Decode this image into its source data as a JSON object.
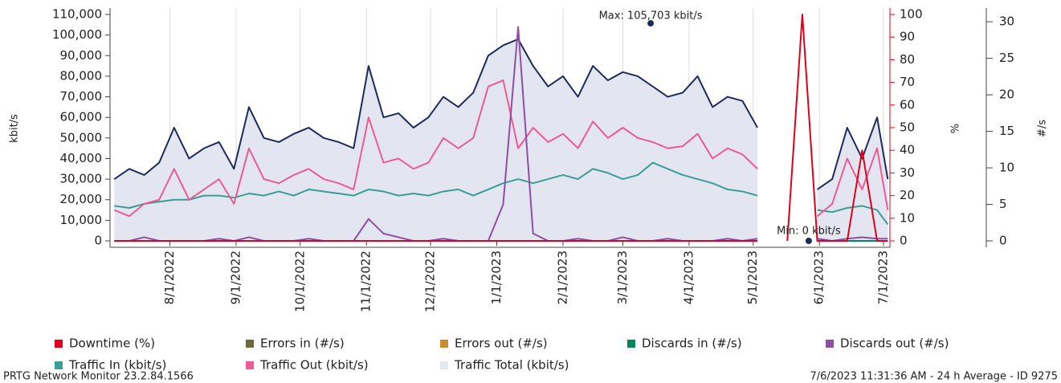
{
  "chart_data": {
    "type": "line",
    "x": [
      "7/6/2022",
      "7/13/2022",
      "7/20/2022",
      "7/27/2022",
      "8/3/2022",
      "8/10/2022",
      "8/17/2022",
      "8/24/2022",
      "8/31/2022",
      "9/7/2022",
      "9/14/2022",
      "9/21/2022",
      "9/28/2022",
      "10/5/2022",
      "10/12/2022",
      "10/19/2022",
      "10/26/2022",
      "11/2/2022",
      "11/9/2022",
      "11/16/2022",
      "11/23/2022",
      "11/30/2022",
      "12/7/2022",
      "12/14/2022",
      "12/21/2022",
      "12/28/2022",
      "1/4/2023",
      "1/11/2023",
      "1/18/2023",
      "1/25/2023",
      "2/1/2023",
      "2/8/2023",
      "2/15/2023",
      "2/22/2023",
      "3/1/2023",
      "3/8/2023",
      "3/15/2023",
      "3/22/2023",
      "3/29/2023",
      "4/5/2023",
      "4/12/2023",
      "4/19/2023",
      "4/26/2023",
      "5/3/2023",
      "5/10/2023",
      "5/17/2023",
      "5/24/2023",
      "5/31/2023",
      "6/7/2023",
      "6/14/2023",
      "6/21/2023",
      "6/28/2023",
      "7/3/2023"
    ],
    "xlim": [
      "7/4/2022",
      "7/4/2023"
    ],
    "xticks": [
      "8/1/2022",
      "9/1/2022",
      "10/1/2022",
      "11/1/2022",
      "12/1/2022",
      "1/1/2023",
      "2/1/2023",
      "3/1/2023",
      "4/1/2023",
      "5/1/2023",
      "6/1/2023",
      "7/1/2023"
    ],
    "ylabel": "kbit/s",
    "y2label": "%",
    "y3label": "#/s",
    "ylim": [
      0,
      110000
    ],
    "yticks": [
      0,
      {
        "value": 10000,
        "label": "10,000"
      },
      {
        "value": 20000,
        "label": "20,000"
      },
      {
        "value": 30000,
        "label": "30,000"
      },
      {
        "value": 40000,
        "label": "40,000"
      },
      {
        "value": 50000,
        "label": "50,000"
      },
      {
        "value": 60000,
        "label": "60,000"
      },
      {
        "value": 70000,
        "label": "70,000"
      },
      {
        "value": 80000,
        "label": "80,000"
      },
      {
        "value": 90000,
        "label": "90,000"
      },
      {
        "value": 100000,
        "label": "100,000"
      },
      {
        "value": 110000,
        "label": "110,000"
      }
    ],
    "y2lim": [
      0,
      100
    ],
    "y2ticks": [
      0,
      10,
      20,
      30,
      40,
      50,
      60,
      70,
      80,
      90,
      100
    ],
    "y3lim": [
      0,
      31
    ],
    "y3ticks": [
      0,
      5,
      10,
      15,
      20,
      25,
      30
    ],
    "grid": true,
    "series": [
      {
        "name": "Downtime (%)",
        "color": "#e0001b",
        "axis": "y2",
        "values": [
          0,
          0,
          0,
          0,
          0,
          0,
          0,
          0,
          0,
          0,
          0,
          0,
          0,
          0,
          0,
          0,
          0,
          0,
          0,
          0,
          0,
          0,
          0,
          0,
          0,
          0,
          0,
          0,
          0,
          0,
          0,
          0,
          0,
          0,
          0,
          0,
          0,
          0,
          0,
          0,
          0,
          0,
          0,
          0,
          null,
          0,
          100,
          0,
          0,
          0,
          40,
          0,
          0
        ]
      },
      {
        "name": "Errors in (#/s)",
        "color": "#6b6b3a",
        "axis": "y3",
        "values": [
          0,
          0,
          0,
          0,
          0,
          0,
          0,
          0,
          0,
          0,
          0,
          0,
          0,
          0,
          0,
          0,
          0,
          0,
          0,
          0,
          0,
          0,
          0,
          0,
          0,
          0,
          0,
          0,
          0,
          0,
          0,
          0,
          0,
          0,
          0,
          0,
          0,
          0,
          0,
          0,
          0,
          0,
          0,
          0,
          null,
          0,
          null,
          0,
          0,
          0,
          0,
          0,
          0
        ]
      },
      {
        "name": "Errors out (#/s)",
        "color": "#cc8a33",
        "axis": "y3",
        "values": [
          0,
          0,
          0,
          0,
          0,
          0,
          0,
          0,
          0,
          0,
          0,
          0,
          0,
          0,
          0,
          0,
          0,
          0,
          0,
          0,
          0,
          0,
          0,
          0,
          0,
          0,
          0,
          0,
          0,
          0,
          0,
          0,
          0,
          0,
          0,
          0,
          0,
          0,
          0,
          0,
          0,
          0,
          0,
          0,
          null,
          0,
          null,
          0,
          0,
          0,
          0,
          0,
          0
        ]
      },
      {
        "name": "Discards in (#/s)",
        "color": "#00875a",
        "axis": "y3",
        "values": [
          0,
          0,
          0,
          0,
          0,
          0,
          0,
          0,
          0,
          0,
          0,
          0,
          0,
          0,
          0,
          0,
          0,
          0,
          0,
          0,
          0,
          0,
          0,
          0,
          0,
          0,
          0,
          0,
          0,
          0,
          0,
          0,
          0,
          0,
          0,
          0,
          0,
          0,
          0,
          0,
          0,
          0,
          0,
          0,
          null,
          0,
          null,
          0,
          0,
          0,
          0,
          0,
          0
        ]
      },
      {
        "name": "Discards out (#/s)",
        "color": "#8e4fa3",
        "axis": "y3",
        "values": [
          0,
          0,
          0.5,
          0,
          0,
          0,
          0,
          0.3,
          0,
          0.5,
          0,
          0,
          0,
          0.3,
          0,
          0,
          0,
          3,
          1,
          0.5,
          0,
          0,
          0.3,
          0,
          0,
          0,
          5,
          29.3,
          1,
          0,
          0,
          0.3,
          0,
          0,
          0.5,
          0,
          0,
          0.3,
          0,
          0,
          0,
          0.3,
          0,
          0.3,
          null,
          0,
          null,
          0.3,
          0,
          0.3,
          0.5,
          0.3,
          0.3
        ]
      },
      {
        "name": "Traffic In (kbit/s)",
        "color": "#3a9e96",
        "axis": "y",
        "values": [
          17000,
          16000,
          18000,
          19000,
          20000,
          20000,
          22000,
          22000,
          21000,
          23000,
          22000,
          24000,
          22000,
          25000,
          24000,
          23000,
          22000,
          25000,
          24000,
          22000,
          23000,
          22000,
          24000,
          25000,
          22000,
          25000,
          28000,
          30000,
          28000,
          30000,
          32000,
          30000,
          35000,
          33000,
          30000,
          32000,
          38000,
          35000,
          32000,
          30000,
          28000,
          25000,
          24000,
          22000,
          null,
          20000,
          null,
          15000,
          14000,
          16000,
          17000,
          15000,
          8000
        ]
      },
      {
        "name": "Traffic Out (kbit/s)",
        "color": "#ec5b95",
        "axis": "y",
        "values": [
          15000,
          12000,
          18000,
          20000,
          35000,
          20000,
          25000,
          30000,
          18000,
          45000,
          30000,
          28000,
          32000,
          35000,
          30000,
          28000,
          25000,
          60000,
          38000,
          40000,
          35000,
          38000,
          50000,
          45000,
          50000,
          75000,
          78000,
          45000,
          55000,
          48000,
          52000,
          45000,
          58000,
          50000,
          55000,
          50000,
          48000,
          45000,
          46000,
          52000,
          40000,
          45000,
          42000,
          35000,
          null,
          20000,
          null,
          12000,
          18000,
          40000,
          25000,
          45000,
          15000
        ]
      },
      {
        "name": "Traffic Total (kbit/s)",
        "color": "#e3e6f0",
        "line_color": "#1c2b5a",
        "axis": "y",
        "values": [
          30000,
          35000,
          32000,
          38000,
          55000,
          40000,
          45000,
          48000,
          35000,
          65000,
          50000,
          48000,
          52000,
          55000,
          50000,
          48000,
          45000,
          85000,
          60000,
          62000,
          55000,
          60000,
          70000,
          65000,
          72000,
          90000,
          95000,
          98000,
          85000,
          75000,
          80000,
          70000,
          85000,
          78000,
          82000,
          80000,
          75000,
          70000,
          72000,
          80000,
          65000,
          70000,
          68000,
          55000,
          null,
          40000,
          null,
          25000,
          30000,
          55000,
          40000,
          60000,
          30000
        ]
      }
    ],
    "annotations": [
      {
        "text": "Max: 105,703 kbit/s",
        "value": 105703,
        "x": "3/14/2023"
      },
      {
        "text": "Min: 0 kbit/s",
        "value": 0,
        "x": "5/27/2023"
      }
    ],
    "footer_left": "PRTG Network Monitor 23.2.84.1566",
    "footer_right": "7/6/2023 11:31:36 AM - 24 h Average - ID 9275"
  }
}
